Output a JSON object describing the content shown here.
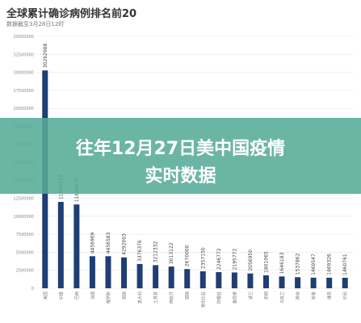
{
  "chart_title": "全球累计确诊病例排名前20",
  "chart_subtitle": "数据截至3月28日12时",
  "overlay_text": {
    "line1": "往年12月27日美中国疫情",
    "line2": "实时数据"
  },
  "colors": {
    "bar": "#1f3e75",
    "overlay": "#56ab98",
    "grid": "#e6e6e6"
  },
  "chart_data": {
    "type": "bar",
    "title": "全球累计确诊病例排名前20",
    "ylim": [
      0,
      35000000
    ],
    "yticks": [
      0,
      2500000,
      5000000,
      7500000,
      10000000,
      12500000,
      15000000,
      17500000,
      20000000,
      22500000,
      25000000,
      27500000,
      30000000,
      32500000,
      35000000
    ],
    "ytick_labels": [
      "0",
      "2500000",
      "5000000",
      "7500000",
      "10000000",
      "12500000",
      "15000000",
      "17500000",
      "20000000",
      "22500000",
      "25000000",
      "27500000",
      "30000000",
      "32500000",
      "35000000"
    ],
    "categories": [
      "美国",
      "印度",
      "巴西",
      "法国",
      "俄罗斯",
      "英国",
      "意大利",
      "土耳其",
      "西班牙",
      "德国",
      "哥伦比亚",
      "阿根廷",
      "墨西哥",
      "波兰",
      "伊朗",
      "乌克兰",
      "南非",
      "秘鲁",
      "捷克",
      "印尼"
    ],
    "values": [
      30262988,
      11998233,
      11646879,
      4456969,
      4456583,
      4292003,
      3376376,
      3212332,
      3013122,
      2670000,
      2357150,
      2246772,
      2195772,
      2056950,
      1801065,
      1646183,
      1537862,
      1469547,
      1469326,
      1460761
    ],
    "value_labels": [
      "30262988",
      "11998233",
      "11646879",
      "4456969",
      "4456583",
      "4292003",
      "3376376",
      "3212332",
      "3013122",
      "2670000",
      "2357150",
      "2246772",
      "2195772",
      "2056950",
      "1801065",
      "1646183",
      "1537862",
      "1469547",
      "1469326",
      "1460761"
    ]
  }
}
